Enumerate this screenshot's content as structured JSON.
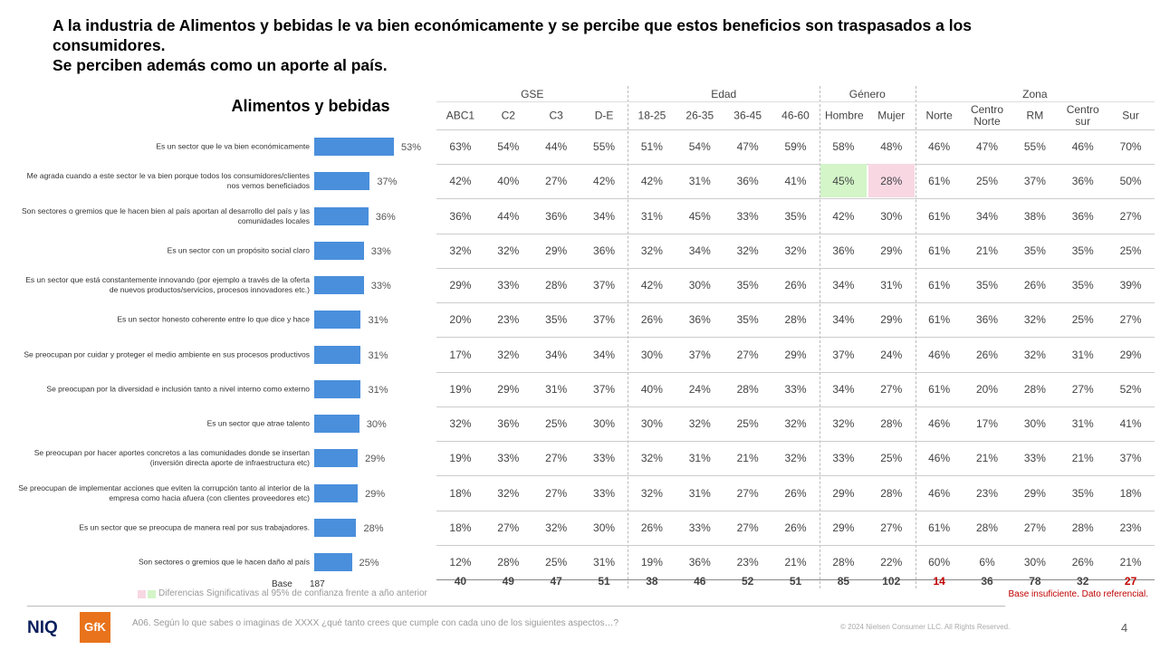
{
  "header": {
    "title": "A la industria de Alimentos y bebidas le va bien económicamente y se percibe que estos beneficios son traspasados a los consumidores.",
    "subtitle": "Se perciben además como un aporte al país."
  },
  "chart_data": {
    "type": "bar",
    "orientation": "horizontal",
    "title": "Alimentos y bebidas",
    "color": "#4a8fdc",
    "categories": [
      "Es un sector que le va bien económicamente",
      "Me agrada cuando a este sector le va bien porque todos los consumidores/clientes nos vemos beneficiados",
      "Son sectores o gremios que le hacen bien al país aportan al desarrollo del país y las comunidades locales",
      "Es un sector con un propósito social claro",
      "Es un sector que está constantemente innovando (por ejemplo a través de la oferta de nuevos productos/servicios, procesos innovadores etc.)",
      "Es un sector honesto coherente entre lo que dice y hace",
      "Se preocupan por cuidar y proteger el medio ambiente en sus procesos productivos",
      "Se preocupan por la diversidad e inclusión tanto a nivel interno como externo",
      "Es un sector que atrae talento",
      "Se preocupan por hacer aportes concretos a las comunidades donde se insertan (inversión directa aporte de infraestructura etc)",
      "Se preocupan de implementar acciones que eviten la corrupción tanto al interior de la empresa como hacia afuera (con clientes proveedores etc)",
      "Es un sector que se preocupa de manera real por sus trabajadores.",
      "Son sectores o gremios que le hacen daño al país"
    ],
    "values": [
      53,
      37,
      36,
      33,
      33,
      31,
      31,
      31,
      30,
      29,
      29,
      28,
      25
    ],
    "value_labels": [
      "53%",
      "37%",
      "36%",
      "33%",
      "33%",
      "31%",
      "31%",
      "31%",
      "30%",
      "29%",
      "29%",
      "28%",
      "25%"
    ],
    "base_label": "Base",
    "base": 187
  },
  "table": {
    "groups": [
      {
        "name": "GSE",
        "span": 4
      },
      {
        "name": "Edad",
        "span": 4
      },
      {
        "name": "Género",
        "span": 2
      },
      {
        "name": "Zona",
        "span": 5
      }
    ],
    "columns": [
      "ABC1",
      "C2",
      "C3",
      "D-E",
      "18-25",
      "26-35",
      "36-45",
      "46-60",
      "Hombre",
      "Mujer",
      "Norte",
      "Centro Norte",
      "RM",
      "Centro sur",
      "Sur"
    ],
    "rows": [
      [
        "63%",
        "54%",
        "44%",
        "55%",
        "51%",
        "54%",
        "47%",
        "59%",
        "58%",
        "48%",
        "46%",
        "47%",
        "55%",
        "46%",
        "70%"
      ],
      [
        "42%",
        "40%",
        "27%",
        "42%",
        "42%",
        "31%",
        "36%",
        "41%",
        "45%",
        "28%",
        "61%",
        "25%",
        "37%",
        "36%",
        "50%"
      ],
      [
        "36%",
        "44%",
        "36%",
        "34%",
        "31%",
        "45%",
        "33%",
        "35%",
        "42%",
        "30%",
        "61%",
        "34%",
        "38%",
        "36%",
        "27%"
      ],
      [
        "32%",
        "32%",
        "29%",
        "36%",
        "32%",
        "34%",
        "32%",
        "32%",
        "36%",
        "29%",
        "61%",
        "21%",
        "35%",
        "35%",
        "25%"
      ],
      [
        "29%",
        "33%",
        "28%",
        "37%",
        "42%",
        "30%",
        "35%",
        "26%",
        "34%",
        "31%",
        "61%",
        "35%",
        "26%",
        "35%",
        "39%"
      ],
      [
        "20%",
        "23%",
        "35%",
        "37%",
        "26%",
        "36%",
        "35%",
        "28%",
        "34%",
        "29%",
        "61%",
        "36%",
        "32%",
        "25%",
        "27%"
      ],
      [
        "17%",
        "32%",
        "34%",
        "34%",
        "30%",
        "37%",
        "27%",
        "29%",
        "37%",
        "24%",
        "46%",
        "26%",
        "32%",
        "31%",
        "29%"
      ],
      [
        "19%",
        "29%",
        "31%",
        "37%",
        "40%",
        "24%",
        "28%",
        "33%",
        "34%",
        "27%",
        "61%",
        "20%",
        "28%",
        "27%",
        "52%"
      ],
      [
        "32%",
        "36%",
        "25%",
        "30%",
        "30%",
        "32%",
        "25%",
        "32%",
        "32%",
        "28%",
        "46%",
        "17%",
        "30%",
        "31%",
        "41%"
      ],
      [
        "19%",
        "33%",
        "27%",
        "33%",
        "32%",
        "31%",
        "21%",
        "32%",
        "33%",
        "25%",
        "46%",
        "21%",
        "33%",
        "21%",
        "37%"
      ],
      [
        "18%",
        "32%",
        "27%",
        "33%",
        "32%",
        "31%",
        "27%",
        "26%",
        "29%",
        "28%",
        "46%",
        "23%",
        "29%",
        "35%",
        "18%"
      ],
      [
        "18%",
        "27%",
        "32%",
        "30%",
        "26%",
        "33%",
        "27%",
        "26%",
        "29%",
        "27%",
        "61%",
        "28%",
        "27%",
        "28%",
        "23%"
      ],
      [
        "12%",
        "28%",
        "25%",
        "31%",
        "19%",
        "36%",
        "23%",
        "21%",
        "28%",
        "22%",
        "60%",
        "6%",
        "30%",
        "26%",
        "21%"
      ]
    ],
    "base": [
      40,
      49,
      47,
      51,
      38,
      46,
      52,
      51,
      85,
      102,
      14,
      36,
      78,
      32,
      27
    ]
  },
  "footer": {
    "legend": "Diferencias Significativas al 95% de confianza frente a año anterior",
    "note": "Base insuficiente. Dato referencial.",
    "question": "A06. Según lo que sabes o imaginas de XXXX ¿qué tanto crees que cumple con cada uno de los siguientes aspectos…?",
    "copyright": "© 2024 Nielsen Consumer LLC. All Rights Reserved.",
    "page": "4",
    "logo_niq": "NIQ",
    "logo_gfk": "GfK"
  }
}
